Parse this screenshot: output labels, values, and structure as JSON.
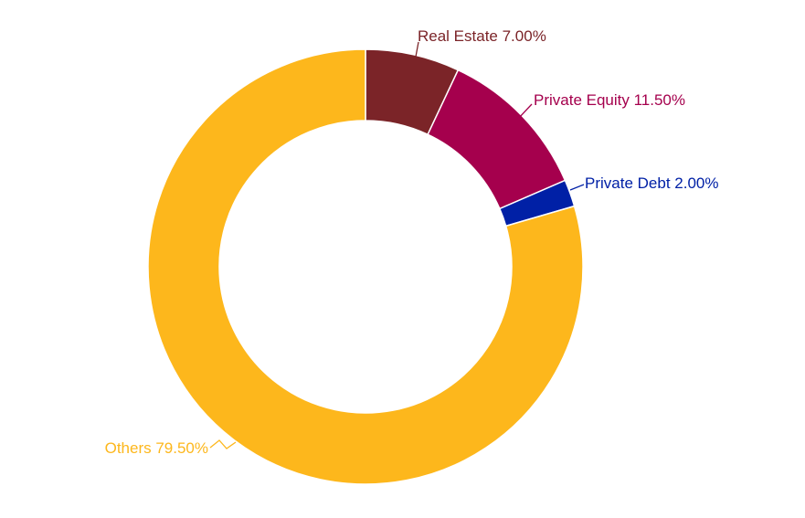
{
  "chart_data": {
    "type": "pie",
    "donut": true,
    "slices": [
      {
        "label": "Real Estate",
        "value": 7.0,
        "display": "Real Estate 7.00%",
        "color": "#7B2428"
      },
      {
        "label": "Private Equity",
        "value": 11.5,
        "display": "Private Equity 11.50%",
        "color": "#A5004D"
      },
      {
        "label": "Private Debt",
        "value": 2.0,
        "display": "Private Debt 2.00%",
        "color": "#0020A6"
      },
      {
        "label": "Others",
        "value": 79.5,
        "display": "Others 79.50%",
        "color": "#FDB71C"
      }
    ]
  }
}
